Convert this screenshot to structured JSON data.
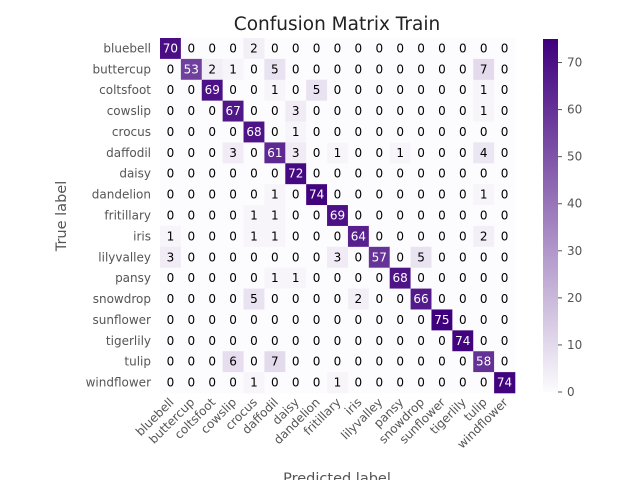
{
  "chart_data": {
    "type": "heatmap",
    "title": "Confusion Matrix Train",
    "xlabel": "Predicted label",
    "ylabel": "True label",
    "labels": [
      "bluebell",
      "buttercup",
      "coltsfoot",
      "cowslip",
      "crocus",
      "daffodil",
      "daisy",
      "dandelion",
      "fritillary",
      "iris",
      "lilyvalley",
      "pansy",
      "snowdrop",
      "sunflower",
      "tigerlily",
      "tulip",
      "windflower"
    ],
    "matrix": [
      [
        70,
        0,
        0,
        0,
        2,
        0,
        0,
        0,
        0,
        0,
        0,
        0,
        0,
        0,
        0,
        0,
        0
      ],
      [
        0,
        53,
        2,
        1,
        0,
        5,
        0,
        0,
        0,
        0,
        0,
        0,
        0,
        0,
        0,
        7,
        0
      ],
      [
        0,
        0,
        69,
        0,
        0,
        1,
        0,
        5,
        0,
        0,
        0,
        0,
        0,
        0,
        0,
        1,
        0
      ],
      [
        0,
        0,
        0,
        67,
        0,
        0,
        3,
        0,
        0,
        0,
        0,
        0,
        0,
        0,
        0,
        1,
        0
      ],
      [
        0,
        0,
        0,
        0,
        68,
        0,
        1,
        0,
        0,
        0,
        0,
        0,
        0,
        0,
        0,
        0,
        0
      ],
      [
        0,
        0,
        0,
        3,
        0,
        61,
        3,
        0,
        1,
        0,
        0,
        1,
        0,
        0,
        0,
        4,
        0
      ],
      [
        0,
        0,
        0,
        0,
        0,
        0,
        72,
        0,
        0,
        0,
        0,
        0,
        0,
        0,
        0,
        0,
        0
      ],
      [
        0,
        0,
        0,
        0,
        0,
        1,
        0,
        74,
        0,
        0,
        0,
        0,
        0,
        0,
        0,
        1,
        0
      ],
      [
        0,
        0,
        0,
        0,
        1,
        1,
        0,
        0,
        69,
        0,
        0,
        0,
        0,
        0,
        0,
        0,
        0
      ],
      [
        1,
        0,
        0,
        0,
        1,
        1,
        0,
        0,
        0,
        64,
        0,
        0,
        0,
        0,
        0,
        2,
        0
      ],
      [
        3,
        0,
        0,
        0,
        0,
        0,
        0,
        0,
        3,
        0,
        57,
        0,
        5,
        0,
        0,
        0,
        0
      ],
      [
        0,
        0,
        0,
        0,
        0,
        1,
        1,
        0,
        0,
        0,
        0,
        68,
        0,
        0,
        0,
        0,
        0
      ],
      [
        0,
        0,
        0,
        0,
        5,
        0,
        0,
        0,
        0,
        2,
        0,
        0,
        66,
        0,
        0,
        0,
        0
      ],
      [
        0,
        0,
        0,
        0,
        0,
        0,
        0,
        0,
        0,
        0,
        0,
        0,
        0,
        75,
        0,
        0,
        0
      ],
      [
        0,
        0,
        0,
        0,
        0,
        0,
        0,
        0,
        0,
        0,
        0,
        0,
        0,
        0,
        74,
        0,
        0
      ],
      [
        0,
        0,
        0,
        6,
        0,
        7,
        0,
        0,
        0,
        0,
        0,
        0,
        0,
        0,
        0,
        58,
        0
      ],
      [
        0,
        0,
        0,
        0,
        1,
        0,
        0,
        0,
        1,
        0,
        0,
        0,
        0,
        0,
        0,
        0,
        74
      ]
    ],
    "colormap": "Purples",
    "color_min": "#fcfbfd",
    "color_max": "#3f007d",
    "vmin": 0,
    "vmax": 75,
    "colorbar_ticks": [
      0,
      10,
      20,
      30,
      40,
      50,
      60,
      70
    ]
  }
}
